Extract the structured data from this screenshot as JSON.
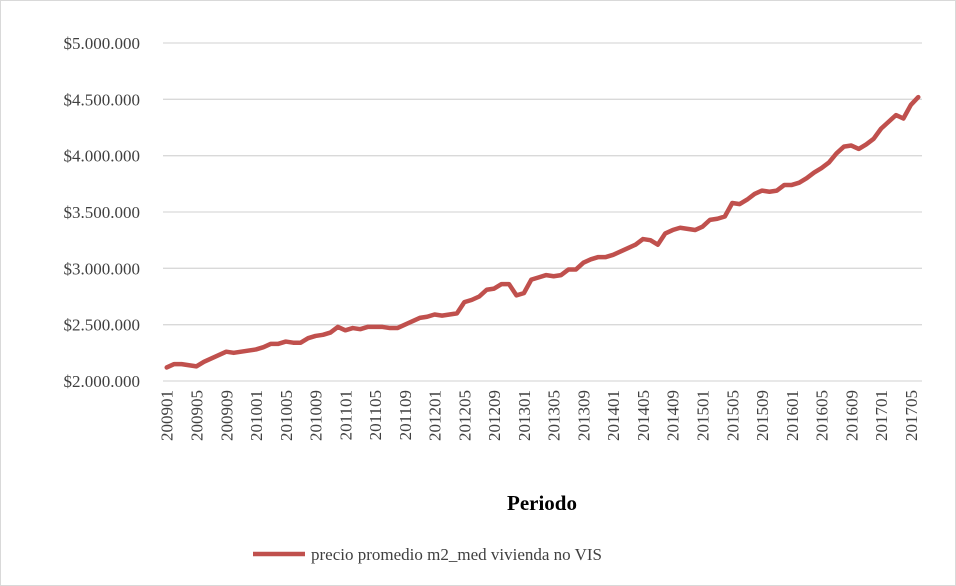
{
  "chart_data": {
    "type": "line",
    "x_label": "Periodo",
    "categories": [
      "200901",
      null,
      null,
      null,
      "200905",
      null,
      null,
      null,
      "200909",
      null,
      null,
      null,
      "201001",
      null,
      null,
      null,
      "201005",
      null,
      null,
      null,
      "201009",
      null,
      null,
      null,
      "201101",
      null,
      null,
      null,
      "201105",
      null,
      null,
      null,
      "201109",
      null,
      null,
      null,
      "201201",
      null,
      null,
      null,
      "201205",
      null,
      null,
      null,
      "201209",
      null,
      null,
      null,
      "201301",
      null,
      null,
      null,
      "201305",
      null,
      null,
      null,
      "201309",
      null,
      null,
      null,
      "201401",
      null,
      null,
      null,
      "201405",
      null,
      null,
      null,
      "201409",
      null,
      null,
      null,
      "201501",
      null,
      null,
      null,
      "201505",
      null,
      null,
      null,
      "201509",
      null,
      null,
      null,
      "201601",
      null,
      null,
      null,
      "201605",
      null,
      null,
      null,
      "201609",
      null,
      null,
      null,
      "201701",
      null,
      null,
      null,
      "201705",
      null
    ],
    "series": [
      {
        "name": "precio promedio m2_med vivienda no VIS",
        "color": "#c0504d",
        "values": [
          2120000,
          2150000,
          2150000,
          2140000,
          2130000,
          2170000,
          2200000,
          2230000,
          2260000,
          2250000,
          2260000,
          2270000,
          2280000,
          2300000,
          2330000,
          2330000,
          2350000,
          2340000,
          2340000,
          2380000,
          2400000,
          2410000,
          2430000,
          2480000,
          2450000,
          2470000,
          2460000,
          2480000,
          2480000,
          2480000,
          2470000,
          2470000,
          2500000,
          2530000,
          2560000,
          2570000,
          2590000,
          2580000,
          2590000,
          2600000,
          2700000,
          2720000,
          2750000,
          2810000,
          2820000,
          2860000,
          2860000,
          2760000,
          2780000,
          2900000,
          2920000,
          2940000,
          2930000,
          2940000,
          2990000,
          2990000,
          3050000,
          3080000,
          3100000,
          3100000,
          3120000,
          3150000,
          3180000,
          3210000,
          3260000,
          3250000,
          3210000,
          3310000,
          3340000,
          3360000,
          3350000,
          3340000,
          3370000,
          3430000,
          3440000,
          3460000,
          3580000,
          3570000,
          3610000,
          3660000,
          3690000,
          3680000,
          3690000,
          3740000,
          3740000,
          3760000,
          3800000,
          3850000,
          3890000,
          3940000,
          4020000,
          4080000,
          4090000,
          4060000,
          4100000,
          4150000,
          4240000,
          4300000,
          4360000,
          4330000,
          4450000,
          4520000
        ]
      }
    ],
    "ylim": [
      2000000,
      5000000
    ],
    "yticks": [
      {
        "value": 2000000,
        "label": "$2.000.000"
      },
      {
        "value": 2500000,
        "label": "$2.500.000"
      },
      {
        "value": 3000000,
        "label": "$3.000.000"
      },
      {
        "value": 3500000,
        "label": "$3.500.000"
      },
      {
        "value": 4000000,
        "label": "$4.000.000"
      },
      {
        "value": 4500000,
        "label": "$4.500.000"
      },
      {
        "value": 5000000,
        "label": "$5.000.000"
      }
    ],
    "grid": true,
    "legend": "bottom"
  }
}
